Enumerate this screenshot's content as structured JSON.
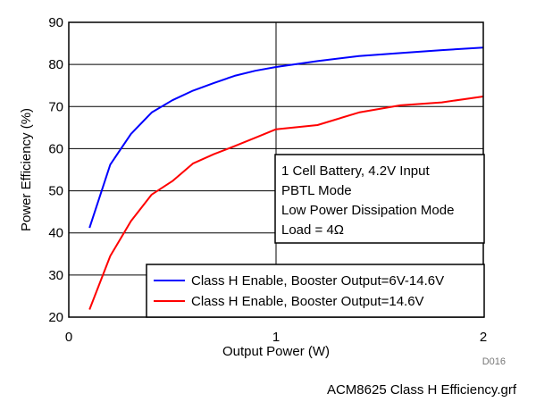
{
  "chart_data": {
    "type": "line",
    "xlabel": "Output Power (W)",
    "ylabel": "Power Efficiency (%)",
    "xlim": [
      0,
      2
    ],
    "ylim": [
      20,
      90
    ],
    "x_ticks": [
      0,
      1,
      2
    ],
    "y_ticks": [
      20,
      30,
      40,
      50,
      60,
      70,
      80,
      90
    ],
    "x_tick_labels": [
      "0",
      "1",
      "2"
    ],
    "y_tick_labels": [
      "20",
      "30",
      "40",
      "50",
      "60",
      "70",
      "80",
      "90"
    ],
    "grid": true,
    "legend_placement": "bottom-right",
    "series": [
      {
        "name": "Class H Enable, Booster Output=6V-14.6V",
        "color": "#0000ff",
        "points": [
          [
            0.1,
            41.2
          ],
          [
            0.2,
            56.2
          ],
          [
            0.3,
            63.5
          ],
          [
            0.4,
            68.6
          ],
          [
            0.5,
            71.5
          ],
          [
            0.6,
            73.8
          ],
          [
            0.7,
            75.6
          ],
          [
            0.8,
            77.3
          ],
          [
            0.9,
            78.5
          ],
          [
            1.0,
            79.4
          ],
          [
            1.2,
            80.8
          ],
          [
            1.4,
            82.0
          ],
          [
            1.6,
            82.7
          ],
          [
            1.8,
            83.4
          ],
          [
            2.0,
            84.0
          ]
        ]
      },
      {
        "name": "Class H Enable, Booster Output=14.6V",
        "color": "#ff0000",
        "points": [
          [
            0.1,
            21.8
          ],
          [
            0.2,
            34.5
          ],
          [
            0.3,
            42.8
          ],
          [
            0.4,
            49.1
          ],
          [
            0.5,
            52.3
          ],
          [
            0.6,
            56.5
          ],
          [
            0.7,
            58.7
          ],
          [
            0.8,
            60.6
          ],
          [
            0.9,
            62.6
          ],
          [
            1.0,
            64.6
          ],
          [
            1.2,
            65.6
          ],
          [
            1.4,
            68.6
          ],
          [
            1.6,
            70.3
          ],
          [
            1.8,
            71.0
          ],
          [
            2.0,
            72.4
          ]
        ]
      }
    ],
    "annotation": {
      "lines": [
        "1 Cell Battery, 4.2V Input",
        "PBTL Mode",
        "Low Power Dissipation Mode",
        "Load = 4Ω"
      ]
    }
  },
  "figure_id": "D016",
  "caption": "ACM8625  Class H Efficiency.grf"
}
